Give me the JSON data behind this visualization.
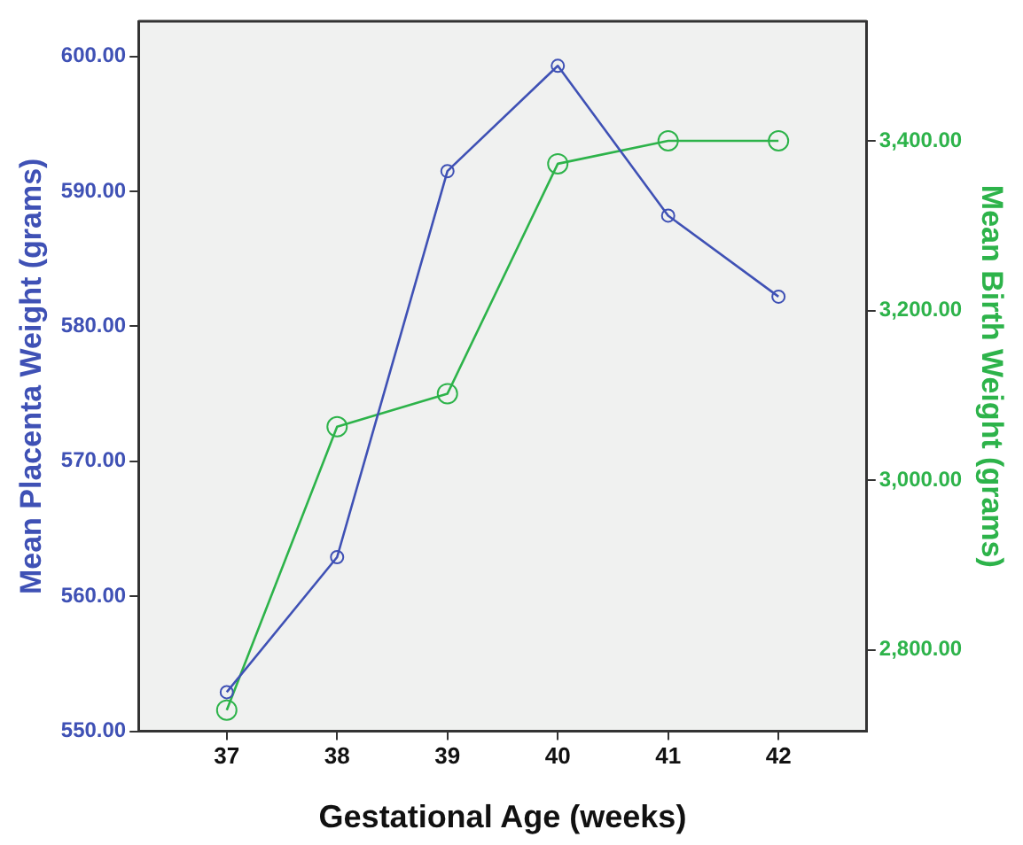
{
  "chart_data": {
    "type": "line",
    "xlabel": "Gestational Age (weeks)",
    "ylabel": "Mean Placenta Weight (grams)",
    "y2label": "Mean Birth Weight (grams)",
    "x": [
      37,
      38,
      39,
      40,
      41,
      42
    ],
    "xlim": [
      36.2,
      42.8
    ],
    "xticks": [
      37,
      38,
      39,
      40,
      41,
      42
    ],
    "ylim": [
      550,
      602.6
    ],
    "yticks": [
      {
        "value": 550,
        "label": "550.00"
      },
      {
        "value": 560,
        "label": "560.00"
      },
      {
        "value": 570,
        "label": "570.00"
      },
      {
        "value": 580,
        "label": "580.00"
      },
      {
        "value": 590,
        "label": "590.00"
      },
      {
        "value": 600,
        "label": "600.00"
      }
    ],
    "y2lim": [
      2704,
      3541
    ],
    "y2ticks": [
      {
        "value": 2800,
        "label": "2,800.00"
      },
      {
        "value": 3000,
        "label": "3,000.00"
      },
      {
        "value": 3200,
        "label": "3,200.00"
      },
      {
        "value": 3400,
        "label": "3,400.00"
      }
    ],
    "series": [
      {
        "color": "#3f51b5",
        "values": [
          552.9,
          562.9,
          591.5,
          599.3,
          588.2,
          582.2
        ]
      },
      {
        "color": "#2db34a",
        "axis": "y2",
        "values": [
          2729,
          3063,
          3102,
          3373,
          3400,
          3400
        ]
      }
    ],
    "marker": "circle",
    "line_style": "solid"
  }
}
